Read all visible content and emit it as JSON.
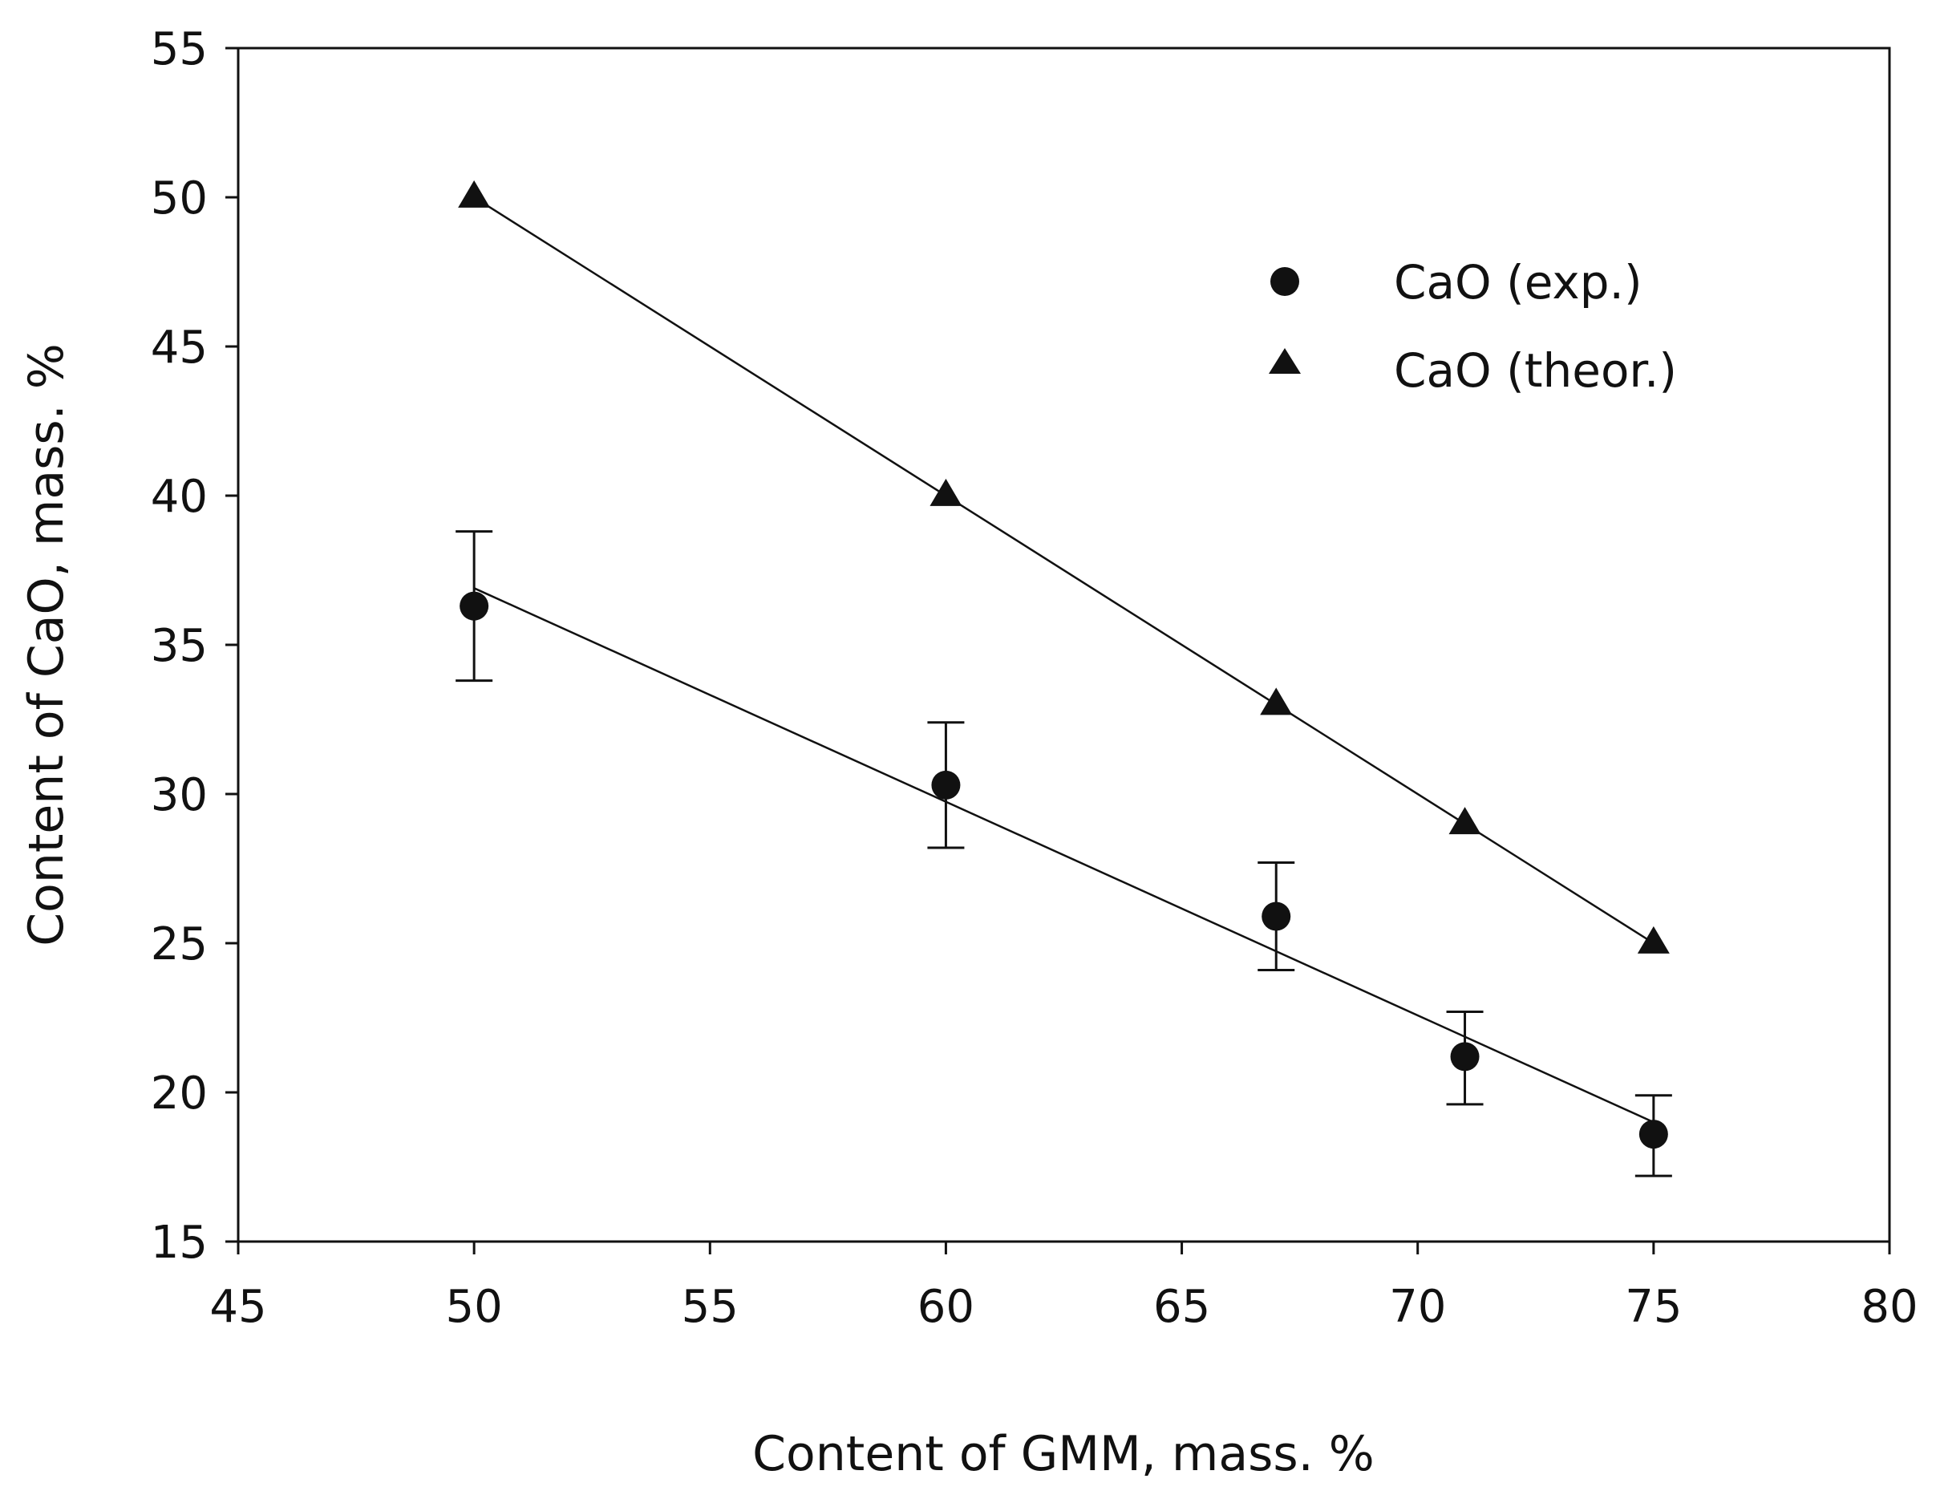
{
  "chart_data": {
    "type": "scatter",
    "title": "",
    "xlabel": "Content of GMM, mass. %",
    "ylabel": "Content of CaO, mass. %",
    "xlim": [
      45,
      80
    ],
    "ylim": [
      15,
      55
    ],
    "xticks": [
      45,
      50,
      55,
      60,
      65,
      70,
      75,
      80
    ],
    "yticks": [
      15,
      20,
      25,
      30,
      35,
      40,
      45,
      50,
      55
    ],
    "grid": false,
    "legend_position": "top-right",
    "series": [
      {
        "name": "CaO (exp.)",
        "marker": "circle",
        "x": [
          50,
          60,
          67,
          71,
          75
        ],
        "y": [
          36.3,
          30.3,
          25.9,
          21.2,
          18.6
        ],
        "y_err_low": [
          33.8,
          28.2,
          24.1,
          19.6,
          17.2
        ],
        "y_err_high": [
          38.8,
          32.4,
          27.7,
          22.7,
          19.9
        ],
        "fit_line": {
          "x": [
            50,
            75
          ],
          "y": [
            36.9,
            19.0
          ]
        }
      },
      {
        "name": "CaO (theor.)",
        "marker": "triangle",
        "x": [
          50,
          60,
          67,
          71,
          75
        ],
        "y": [
          50,
          40,
          33,
          29,
          25
        ],
        "fit_line": {
          "x": [
            50,
            75
          ],
          "y": [
            50,
            25
          ]
        }
      }
    ]
  }
}
